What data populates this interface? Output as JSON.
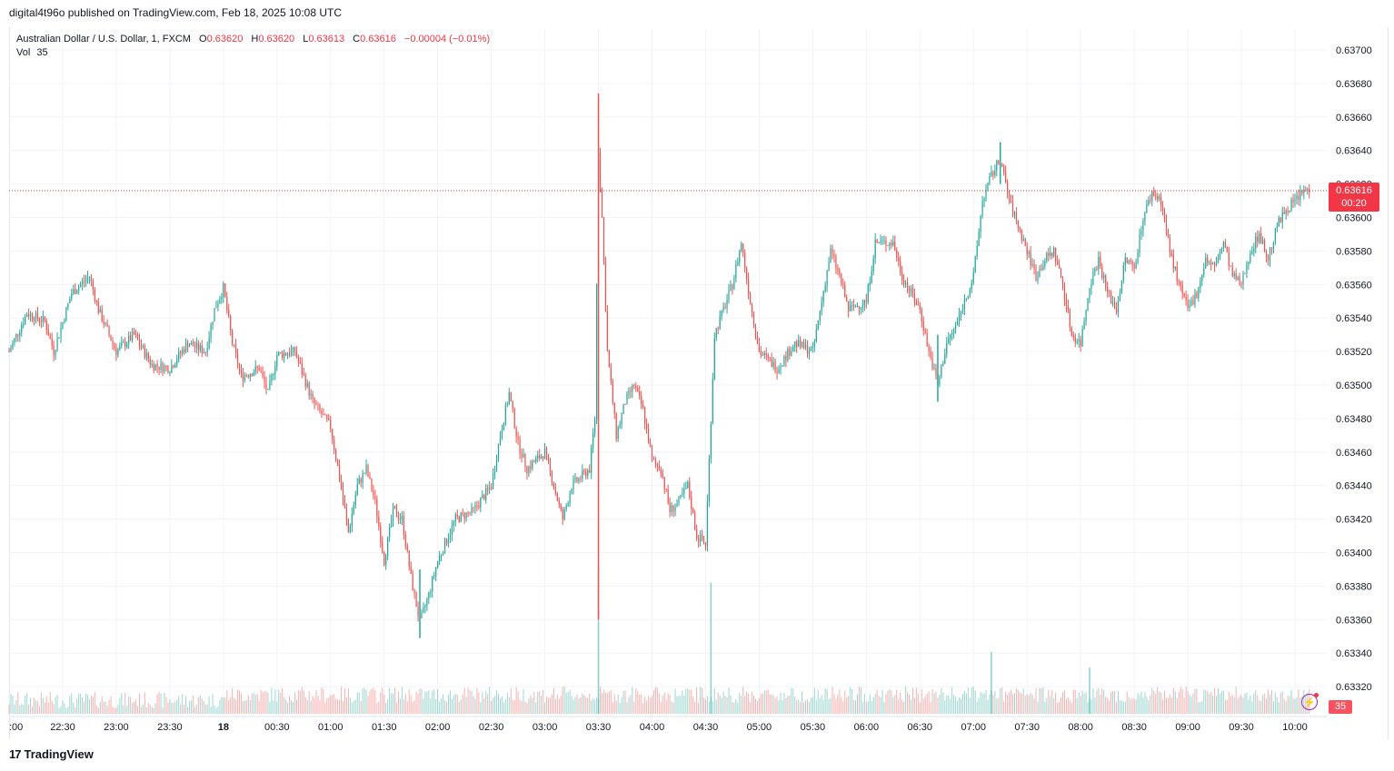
{
  "header": {
    "publish_line": "digital4t96o published on TradingView.com, Feb 18, 2025 10:08 UTC"
  },
  "legend": {
    "symbol": "Australian Dollar / U.S. Dollar, 1, FXCM",
    "o_label": "O",
    "o_value": "0.63620",
    "h_label": "H",
    "h_value": "0.63620",
    "l_label": "L",
    "l_value": "0.63613",
    "c_label": "C",
    "c_value": "0.63616",
    "change": "−0.00004 (−0.01%)",
    "vol_label": "Vol",
    "vol_value": "35"
  },
  "price_tag": {
    "price": "0.63616",
    "countdown": "00:20"
  },
  "volume_tag": "35",
  "footer": {
    "logo_text": "TradingView"
  },
  "colors": {
    "up": "#26a69a",
    "down": "#ef5350",
    "grid": "#f0f3fa",
    "last_price": "#f23645"
  },
  "chart_data": {
    "type": "candlestick",
    "ylim": [
      0.6331,
      0.6371
    ],
    "y_ticks": [
      "0.63700",
      "0.63680",
      "0.63660",
      "0.63640",
      "0.63620",
      "0.63600",
      "0.63580",
      "0.63560",
      "0.63540",
      "0.63520",
      "0.63500",
      "0.63480",
      "0.63460",
      "0.63440",
      "0.63420",
      "0.63400",
      "0.63380",
      "0.63360",
      "0.63340",
      "0.63320"
    ],
    "x_ticks": [
      ":00",
      "22:30",
      "23:00",
      "23:30",
      "18",
      "00:30",
      "01:00",
      "01:30",
      "02:00",
      "02:30",
      "03:00",
      "03:30",
      "04:00",
      "04:30",
      "05:00",
      "05:30",
      "06:00",
      "06:30",
      "07:00",
      "07:30",
      "08:00",
      "08:30",
      "09:00",
      "09:30",
      "10:00"
    ],
    "last_price": 0.63616,
    "close_path": [
      [
        "22:00",
        0.6352
      ],
      [
        "22:10",
        0.63543
      ],
      [
        "22:20",
        0.63538
      ],
      [
        "22:25",
        0.6352
      ],
      [
        "22:35",
        0.63555
      ],
      [
        "22:45",
        0.63565
      ],
      [
        "22:50",
        0.63545
      ],
      [
        "23:00",
        0.6352
      ],
      [
        "23:10",
        0.6353
      ],
      [
        "23:20",
        0.63512
      ],
      [
        "23:30",
        0.6351
      ],
      [
        "23:40",
        0.63525
      ],
      [
        "23:50",
        0.6352
      ],
      [
        "23:55",
        0.63545
      ],
      [
        "00:00",
        0.63558
      ],
      [
        "00:05",
        0.63525
      ],
      [
        "00:10",
        0.63505
      ],
      [
        "00:20",
        0.6351
      ],
      [
        "00:25",
        0.63495
      ],
      [
        "00:30",
        0.63518
      ],
      [
        "00:40",
        0.6352
      ],
      [
        "00:50",
        0.6349
      ],
      [
        "01:00",
        0.63475
      ],
      [
        "01:05",
        0.63445
      ],
      [
        "01:10",
        0.63412
      ],
      [
        "01:15",
        0.6344
      ],
      [
        "01:20",
        0.6345
      ],
      [
        "01:25",
        0.6343
      ],
      [
        "01:30",
        0.63395
      ],
      [
        "01:35",
        0.63425
      ],
      [
        "01:40",
        0.6342
      ],
      [
        "01:45",
        0.63385
      ],
      [
        "01:50",
        0.63358
      ],
      [
        "01:55",
        0.63375
      ],
      [
        "02:00",
        0.63395
      ],
      [
        "02:10",
        0.6342
      ],
      [
        "02:20",
        0.63425
      ],
      [
        "02:30",
        0.6344
      ],
      [
        "02:35",
        0.6347
      ],
      [
        "02:40",
        0.63495
      ],
      [
        "02:45",
        0.63465
      ],
      [
        "02:50",
        0.6345
      ],
      [
        "03:00",
        0.6346
      ],
      [
        "03:05",
        0.6344
      ],
      [
        "03:10",
        0.6342
      ],
      [
        "03:15",
        0.6344
      ],
      [
        "03:25",
        0.6345
      ],
      [
        "03:28",
        0.6348
      ],
      [
        "03:30",
        0.6364
      ],
      [
        "03:32",
        0.636
      ],
      [
        "03:35",
        0.6352
      ],
      [
        "03:40",
        0.6347
      ],
      [
        "03:45",
        0.6349
      ],
      [
        "03:50",
        0.635
      ],
      [
        "03:55",
        0.63485
      ],
      [
        "04:00",
        0.63455
      ],
      [
        "04:05",
        0.6345
      ],
      [
        "04:10",
        0.63425
      ],
      [
        "04:15",
        0.6343
      ],
      [
        "04:20",
        0.6344
      ],
      [
        "04:25",
        0.6341
      ],
      [
        "04:30",
        0.63405
      ],
      [
        "04:33",
        0.6348
      ],
      [
        "04:35",
        0.6353
      ],
      [
        "04:40",
        0.63545
      ],
      [
        "04:45",
        0.6356
      ],
      [
        "04:50",
        0.63585
      ],
      [
        "04:55",
        0.6355
      ],
      [
        "05:00",
        0.6352
      ],
      [
        "05:10",
        0.6351
      ],
      [
        "05:20",
        0.63525
      ],
      [
        "05:30",
        0.6352
      ],
      [
        "05:40",
        0.6358
      ],
      [
        "05:45",
        0.63565
      ],
      [
        "05:50",
        0.63545
      ],
      [
        "06:00",
        0.6355
      ],
      [
        "06:05",
        0.63585
      ],
      [
        "06:15",
        0.63585
      ],
      [
        "06:20",
        0.63565
      ],
      [
        "06:30",
        0.63545
      ],
      [
        "06:35",
        0.6352
      ],
      [
        "06:40",
        0.635
      ],
      [
        "06:45",
        0.63525
      ],
      [
        "06:50",
        0.63535
      ],
      [
        "06:55",
        0.6355
      ],
      [
        "07:00",
        0.63565
      ],
      [
        "07:05",
        0.6361
      ],
      [
        "07:10",
        0.63625
      ],
      [
        "07:15",
        0.63635
      ],
      [
        "07:20",
        0.6361
      ],
      [
        "07:25",
        0.63595
      ],
      [
        "07:30",
        0.6358
      ],
      [
        "07:35",
        0.63565
      ],
      [
        "07:40",
        0.63575
      ],
      [
        "07:45",
        0.6358
      ],
      [
        "07:50",
        0.6356
      ],
      [
        "07:55",
        0.6353
      ],
      [
        "08:00",
        0.63525
      ],
      [
        "08:05",
        0.6356
      ],
      [
        "08:10",
        0.63575
      ],
      [
        "08:15",
        0.63555
      ],
      [
        "08:20",
        0.63545
      ],
      [
        "08:25",
        0.63575
      ],
      [
        "08:30",
        0.6357
      ],
      [
        "08:35",
        0.636
      ],
      [
        "08:40",
        0.63615
      ],
      [
        "08:45",
        0.6361
      ],
      [
        "08:50",
        0.6358
      ],
      [
        "08:55",
        0.6356
      ],
      [
        "09:00",
        0.63545
      ],
      [
        "09:05",
        0.63555
      ],
      [
        "09:10",
        0.63575
      ],
      [
        "09:15",
        0.6357
      ],
      [
        "09:20",
        0.63585
      ],
      [
        "09:25",
        0.63565
      ],
      [
        "09:30",
        0.6356
      ],
      [
        "09:35",
        0.6358
      ],
      [
        "09:40",
        0.6359
      ],
      [
        "09:45",
        0.63575
      ],
      [
        "09:50",
        0.63595
      ],
      [
        "09:55",
        0.63605
      ],
      [
        "10:00",
        0.6361
      ],
      [
        "10:05",
        0.63616
      ]
    ],
    "spikes": [
      {
        "time": "03:30",
        "high": 0.63674,
        "low": 0.6336
      },
      {
        "time": "07:15",
        "high": 0.63645,
        "low": 0.6362
      },
      {
        "time": "01:50",
        "high": 0.6339,
        "low": 0.63349
      },
      {
        "time": "06:40",
        "high": 0.6353,
        "low": 0.6349
      }
    ],
    "volume_spikes": [
      {
        "time": "03:30",
        "value": 0.95
      },
      {
        "time": "04:33",
        "value": 0.85
      },
      {
        "time": "07:10",
        "value": 0.4
      },
      {
        "time": "08:05",
        "value": 0.3
      }
    ]
  }
}
